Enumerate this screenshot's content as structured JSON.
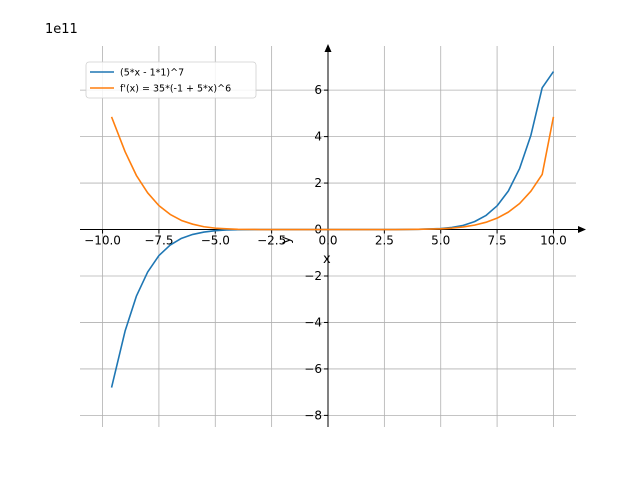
{
  "chart_data": {
    "type": "line",
    "xlabel": "x",
    "ylabel": "y",
    "scale_label": "1e11",
    "xlim": [
      -11,
      11
    ],
    "ylim": [
      -8.5,
      7.9
    ],
    "y_scale": 100000000000.0,
    "grid": true,
    "legend_position": "top-left",
    "x_ticks": [
      -10.0,
      -7.5,
      -5.0,
      -2.5,
      0.0,
      2.5,
      5.0,
      7.5,
      10.0
    ],
    "x_tick_labels": [
      "−10.0",
      "−7.5",
      "−5.0",
      "−2.5",
      "0.0",
      "2.5",
      "5.0",
      "7.5",
      "10.0"
    ],
    "y_ticks": [
      -8,
      -6,
      -4,
      -2,
      0,
      2,
      4,
      6
    ],
    "y_tick_labels": [
      "−8",
      "−6",
      "−4",
      "−2",
      "0",
      "2",
      "4",
      "6"
    ],
    "series": [
      {
        "name": "(5*x - 1*1)^7",
        "color": "#1f77b4",
        "x": [
          -9.6,
          -9.0,
          -8.5,
          -8.0,
          -7.5,
          -7.0,
          -6.5,
          -6.0,
          -5.5,
          -5.0,
          -4.5,
          -4.0,
          -3.0,
          -2.0,
          -1.0,
          0.0,
          1.0,
          2.0,
          3.0,
          4.0,
          5.0,
          5.5,
          6.0,
          6.5,
          7.0,
          7.5,
          8.0,
          8.5,
          9.0,
          9.5,
          10.0
        ],
        "y": [
          -6.8,
          -4.37,
          -2.87,
          -1.83,
          -1.12,
          -0.67,
          -0.38,
          -0.21,
          -0.11,
          -0.05,
          -0.02,
          -0.01,
          0,
          0,
          0,
          0,
          0,
          0,
          0,
          0.01,
          0.04,
          0.09,
          0.18,
          0.34,
          0.6,
          1.02,
          1.66,
          2.63,
          4.06,
          6.1,
          6.8
        ]
      },
      {
        "name": "f'(x) = 35*(-1 + 5*x)^6",
        "color": "#ff7f0e",
        "x": [
          -9.6,
          -9.0,
          -8.5,
          -8.0,
          -7.5,
          -7.0,
          -6.5,
          -6.0,
          -5.5,
          -5.0,
          -4.5,
          -4.0,
          -3.0,
          -2.0,
          -1.0,
          0.0,
          1.0,
          2.0,
          3.0,
          4.0,
          5.0,
          5.5,
          6.0,
          6.5,
          7.0,
          7.5,
          8.0,
          8.5,
          9.0,
          9.5,
          10.0
        ],
        "y": [
          4.85,
          3.35,
          2.33,
          1.58,
          1.03,
          0.65,
          0.39,
          0.23,
          0.12,
          0.06,
          0.03,
          0.01,
          0,
          0,
          0,
          0,
          0,
          0,
          0,
          0.01,
          0.03,
          0.06,
          0.11,
          0.19,
          0.31,
          0.49,
          0.75,
          1.12,
          1.65,
          2.37,
          4.85
        ]
      }
    ]
  }
}
